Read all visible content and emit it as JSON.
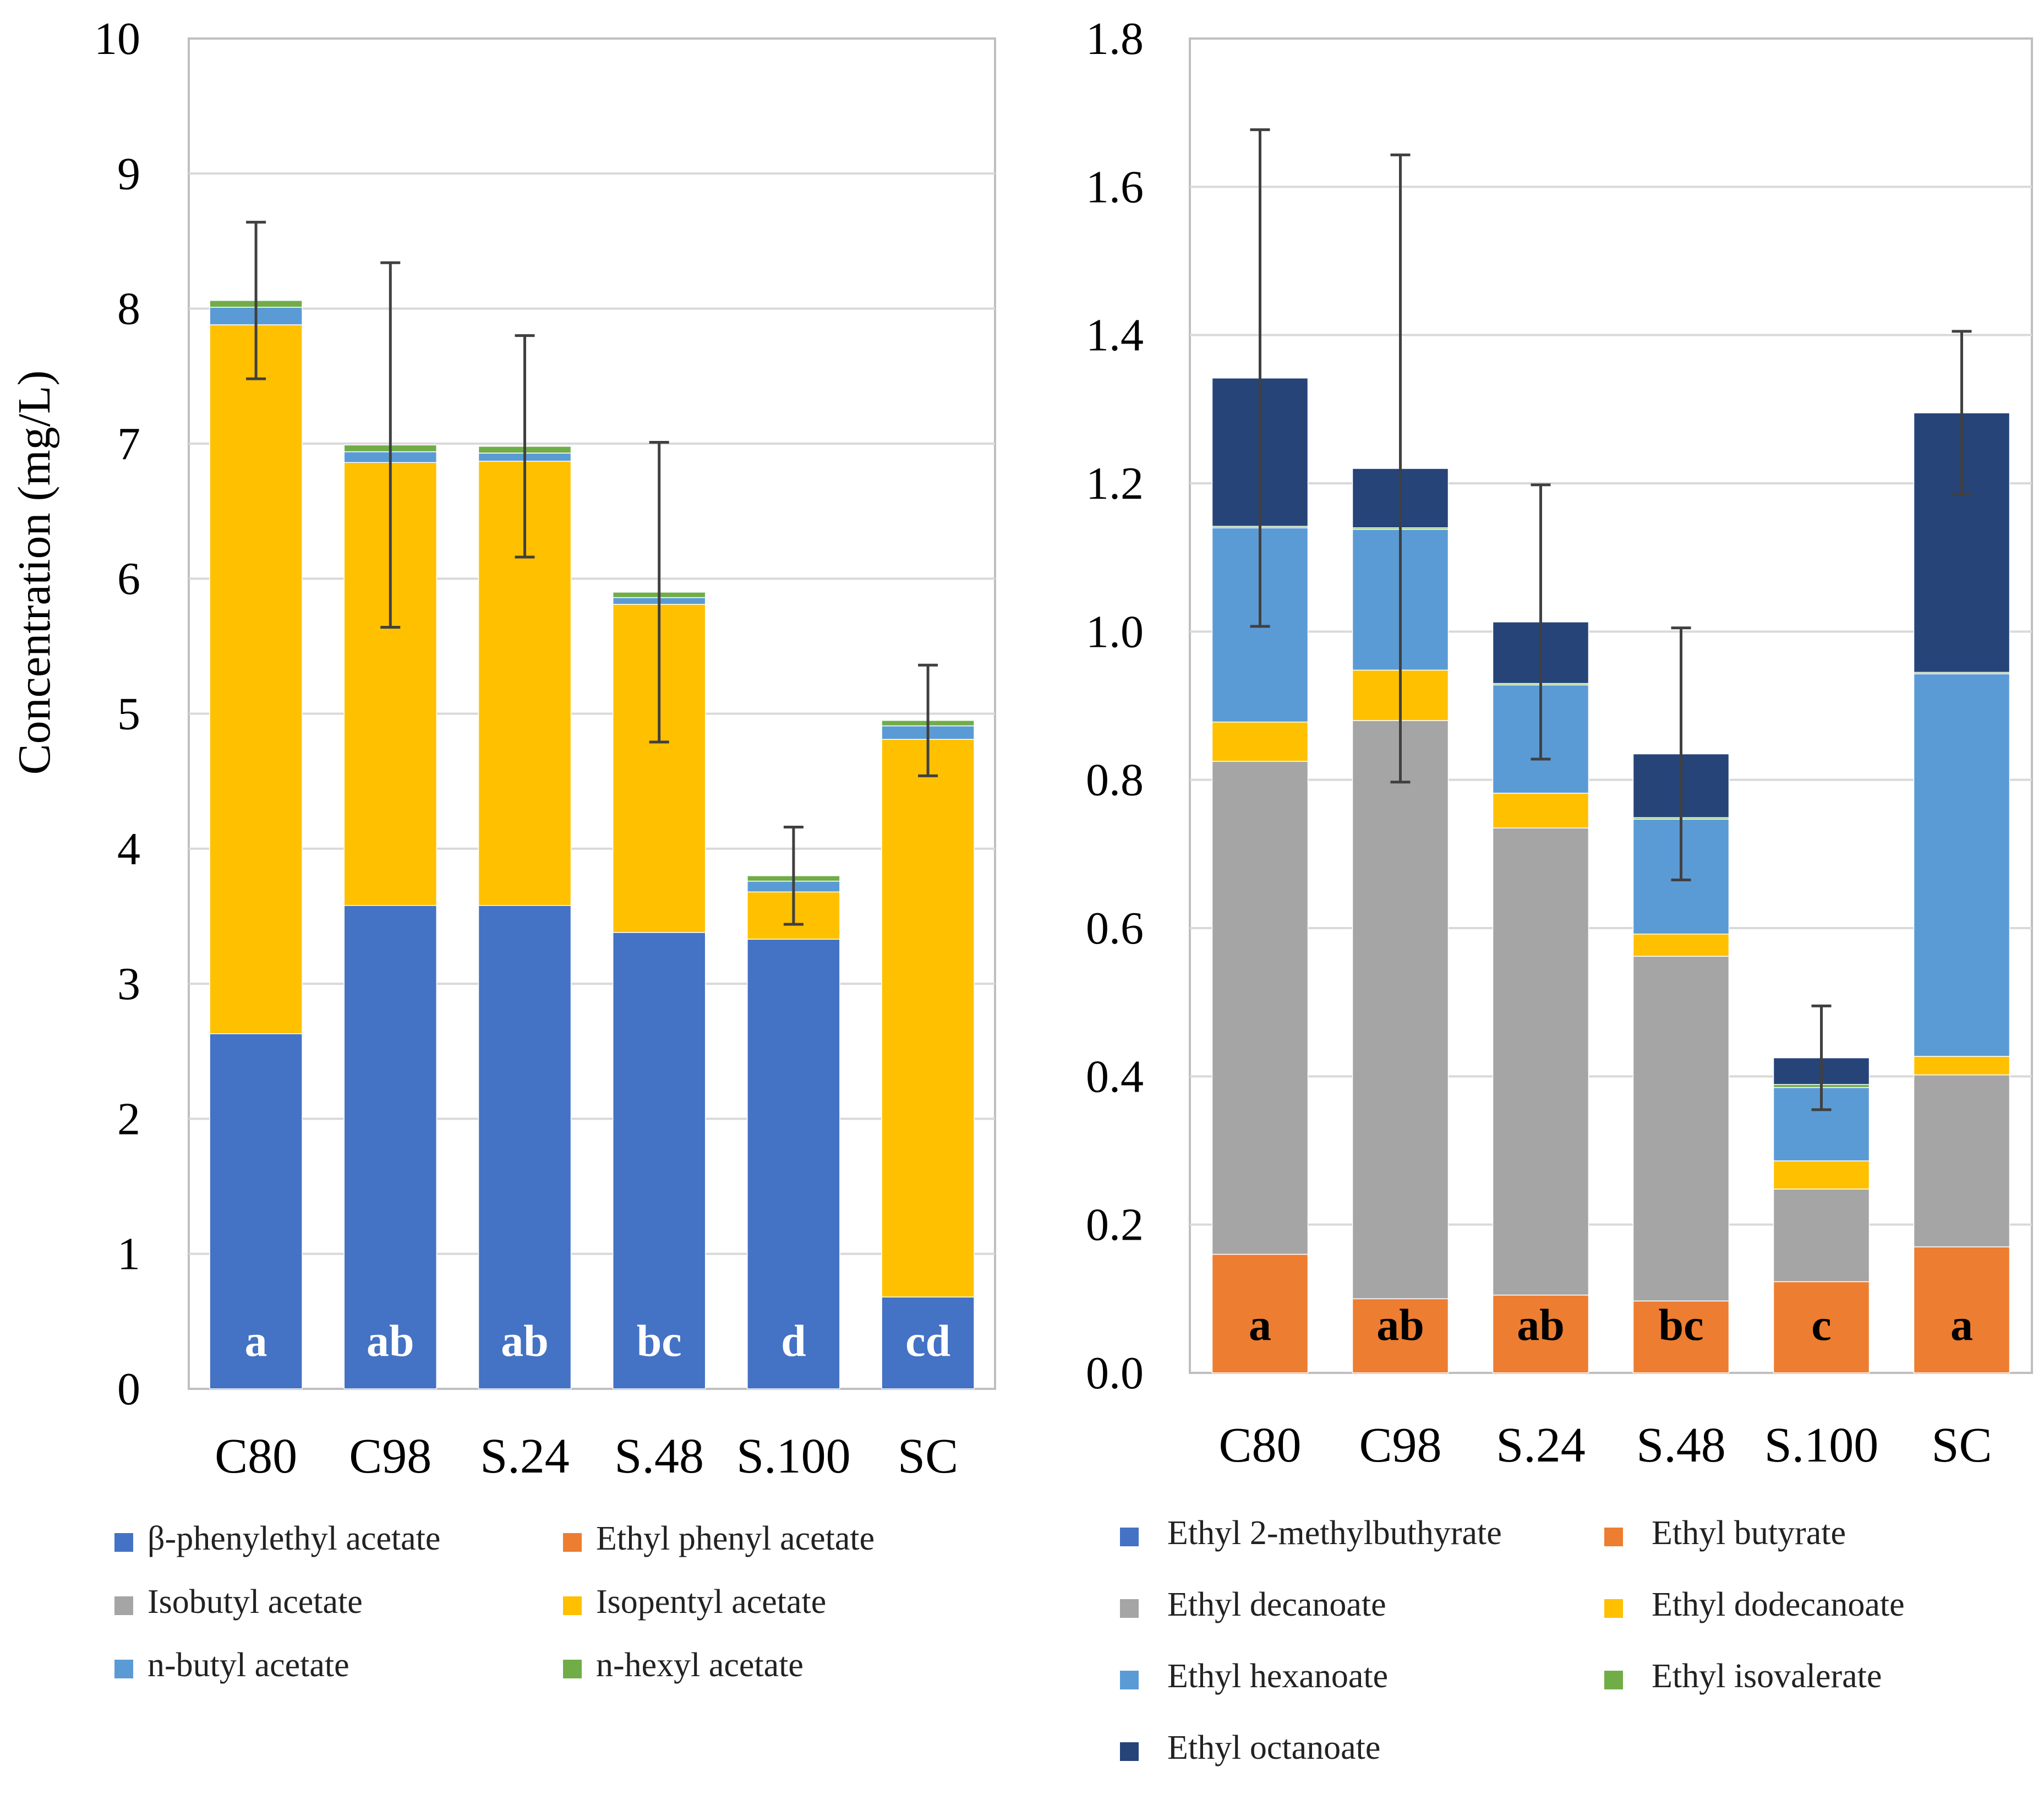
{
  "chart_data": [
    {
      "type": "bar",
      "stacked": true,
      "ylabel": "Concentration (mg/L)",
      "ylim": [
        0,
        10
      ],
      "yticks": [
        0,
        1,
        2,
        3,
        4,
        5,
        6,
        7,
        8,
        9,
        10
      ],
      "ytick_labels": [
        "0",
        "1",
        "2",
        "3",
        "4",
        "5",
        "6",
        "7",
        "8",
        "9",
        "10"
      ],
      "grid": true,
      "legend_position": "bottom",
      "categories": [
        "C80",
        "C98",
        "S.24",
        "S.48",
        "S.100",
        "SC"
      ],
      "series": [
        {
          "name": "β-phenylethyl  acetate",
          "color": "#4472C4",
          "values": [
            2.63,
            3.58,
            3.58,
            3.38,
            3.33,
            0.68
          ]
        },
        {
          "name": "Ethyl phenyl acetate",
          "color": "#ED7D31",
          "values": [
            0,
            0,
            0,
            0,
            0,
            0
          ]
        },
        {
          "name": "Isobutyl acetate",
          "color": "#A5A5A5",
          "values": [
            0,
            0,
            0,
            0,
            0,
            0
          ]
        },
        {
          "name": "Isopentyl acetate",
          "color": "#FFC000",
          "values": [
            5.25,
            3.28,
            3.29,
            2.43,
            0.35,
            4.13
          ]
        },
        {
          "name": "n-butyl acetate",
          "color": "#5B9BD5",
          "values": [
            0.13,
            0.08,
            0.06,
            0.05,
            0.08,
            0.1
          ]
        },
        {
          "name": "n-hexyl acetate",
          "color": "#70AD47",
          "values": [
            0.05,
            0.05,
            0.05,
            0.04,
            0.04,
            0.04
          ]
        }
      ],
      "totals": [
        8.06,
        6.99,
        6.98,
        5.9,
        3.8,
        4.95
      ],
      "error": [
        0.58,
        1.35,
        0.82,
        1.11,
        0.36,
        0.41
      ],
      "significance": [
        "a",
        "ab",
        "ab",
        "bc",
        "d",
        "cd"
      ]
    },
    {
      "type": "bar",
      "stacked": true,
      "ylabel": "",
      "ylim": [
        0,
        1.8
      ],
      "yticks": [
        0,
        0.2,
        0.4,
        0.6,
        0.8,
        1.0,
        1.2,
        1.4,
        1.6,
        1.8
      ],
      "ytick_labels": [
        "0.0",
        "0.2",
        "0.4",
        "0.6",
        "0.8",
        "1.0",
        "1.2",
        "1.4",
        "1.6",
        "1.8"
      ],
      "grid": true,
      "legend_position": "bottom",
      "categories": [
        "C80",
        "C98",
        "S.24",
        "S.48",
        "S.100",
        "SC"
      ],
      "series": [
        {
          "name": "Ethyl 2-methylbuthyrate",
          "color": "#4472C4",
          "values": [
            0,
            0,
            0,
            0,
            0,
            0
          ]
        },
        {
          "name": "Ethyl butyrate",
          "color": "#ED7D31",
          "values": [
            0.16,
            0.1,
            0.105,
            0.097,
            0.123,
            0.17
          ]
        },
        {
          "name": "Ethyl decanoate",
          "color": "#A5A5A5",
          "values": [
            0.665,
            0.78,
            0.63,
            0.465,
            0.125,
            0.232
          ]
        },
        {
          "name": "Ethyl dodecanoate",
          "color": "#FFC000",
          "values": [
            0.053,
            0.068,
            0.047,
            0.03,
            0.038,
            0.025
          ]
        },
        {
          "name": "Ethyl hexanoate",
          "color": "#5B9BD5",
          "values": [
            0.262,
            0.19,
            0.146,
            0.155,
            0.099,
            0.516
          ]
        },
        {
          "name": "Ethyl isovalerate",
          "color": "#70AD47",
          "values": [
            0.002,
            0.002,
            0.002,
            0.002,
            0.004,
            0.002
          ]
        },
        {
          "name": "Ethyl octanoate",
          "color": "#264478",
          "values": [
            0.2,
            0.08,
            0.083,
            0.086,
            0.036,
            0.35
          ]
        }
      ],
      "totals": [
        1.342,
        1.22,
        1.013,
        0.835,
        0.425,
        1.295
      ],
      "error": [
        0.335,
        0.423,
        0.185,
        0.17,
        0.07,
        0.11
      ],
      "significance": [
        "a",
        "ab",
        "ab",
        "bc",
        "c",
        "a"
      ]
    }
  ]
}
